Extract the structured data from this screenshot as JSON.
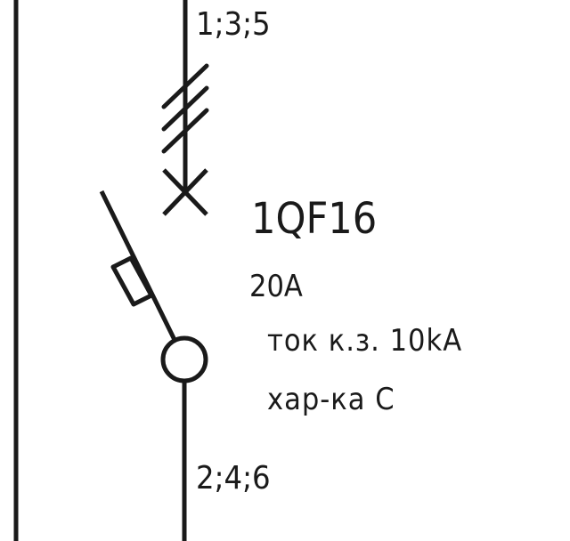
{
  "breaker": {
    "terminals_top": "1;3;5",
    "designation": "1QF16",
    "rated_current": "20A",
    "short_circuit_current": "ток к.з. 10kA",
    "trip_curve": "хар-ка C",
    "terminals_bottom": "2;4;6"
  },
  "colors": {
    "line": "#1a1a1a",
    "background": "#ffffff"
  }
}
